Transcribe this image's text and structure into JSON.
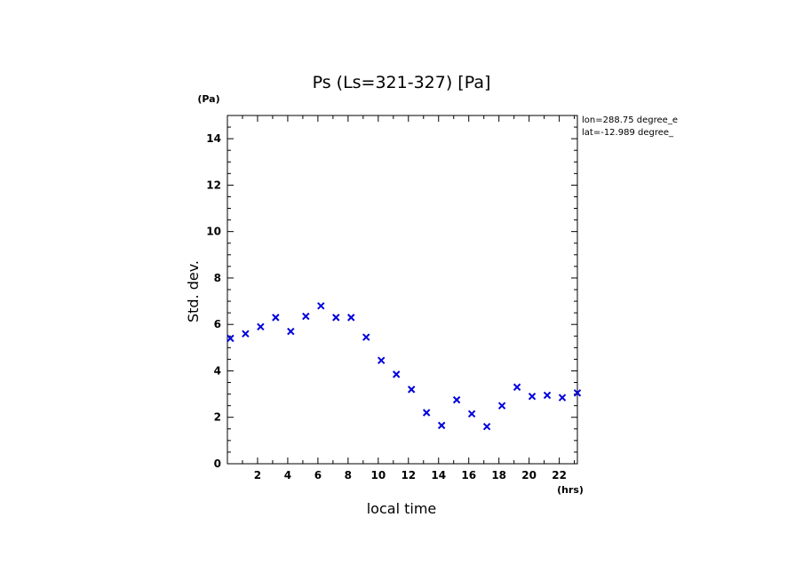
{
  "chart_data": {
    "type": "scatter",
    "title": "Ps (Ls=321-327) [Pa]",
    "xlabel": "local time",
    "ylabel": "Std. dev.",
    "x_unit": "(hrs)",
    "y_unit": "(Pa)",
    "xlim": [
      0,
      23.2
    ],
    "ylim": [
      0,
      15
    ],
    "xticks": [
      2,
      4,
      6,
      8,
      10,
      12,
      14,
      16,
      18,
      20,
      22
    ],
    "yticks": [
      0,
      2,
      4,
      6,
      8,
      10,
      12,
      14
    ],
    "annotations": [
      "lon=288.75 degree_e",
      "lat=-12.989 degree_"
    ],
    "marker": "x",
    "marker_color": "#0000dd",
    "series": [
      {
        "x": [
          0.2,
          1.2,
          2.2,
          3.2,
          4.2,
          5.2,
          6.2,
          7.2,
          8.2,
          9.2,
          10.2,
          11.2,
          12.2,
          13.2,
          14.2,
          15.2,
          16.2,
          17.2,
          18.2,
          19.2,
          20.2,
          21.2,
          22.2,
          23.2
        ],
        "y": [
          5.4,
          5.6,
          5.9,
          6.3,
          5.7,
          6.35,
          6.8,
          6.3,
          6.3,
          5.45,
          4.45,
          3.85,
          3.2,
          2.2,
          1.65,
          2.75,
          2.15,
          1.6,
          2.5,
          3.3,
          2.9,
          2.95,
          2.85,
          3.05
        ]
      }
    ]
  }
}
